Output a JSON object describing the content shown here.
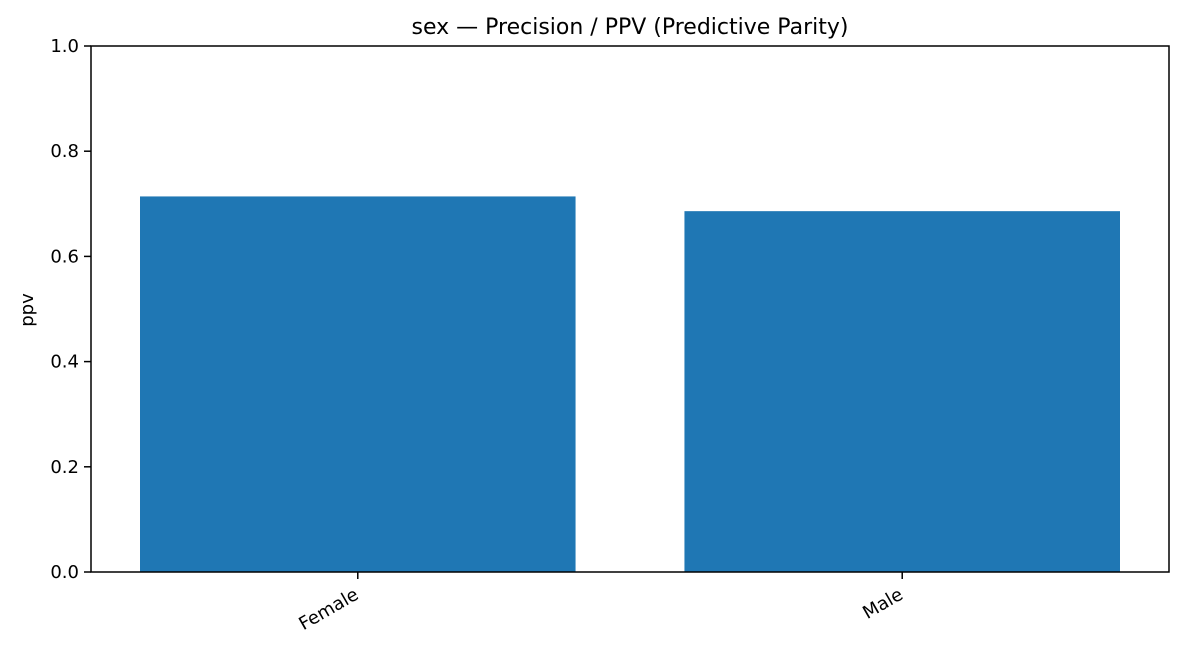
{
  "chart_data": {
    "type": "bar",
    "title": "sex — Precision / PPV (Predictive Parity)",
    "xlabel": "",
    "ylabel": "ppv",
    "categories": [
      "Female",
      "Male"
    ],
    "values": [
      0.714,
      0.686
    ],
    "ylim": [
      0,
      1.0
    ],
    "yticks": [
      "0.0",
      "0.2",
      "0.4",
      "0.6",
      "0.8",
      "1.0"
    ],
    "grid": false,
    "legend": "none",
    "bar_color": "#1f77b4"
  }
}
